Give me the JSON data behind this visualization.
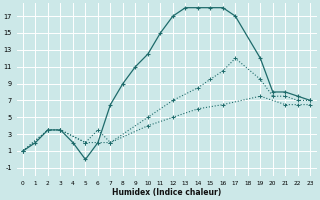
{
  "xlabel": "Humidex (Indice chaleur)",
  "background_color": "#cce8e8",
  "grid_color": "#ffffff",
  "line_color": "#1e6b6b",
  "xlim": [
    -0.5,
    23.5
  ],
  "ylim": [
    -2,
    18.5
  ],
  "xticks": [
    0,
    1,
    2,
    3,
    4,
    5,
    6,
    7,
    8,
    9,
    10,
    11,
    12,
    13,
    14,
    15,
    16,
    17,
    18,
    19,
    20,
    21,
    22,
    23
  ],
  "yticks": [
    -1,
    1,
    3,
    5,
    7,
    9,
    11,
    13,
    15,
    17
  ],
  "series1_x": [
    0,
    1,
    2,
    3,
    4,
    5,
    6,
    7,
    8,
    9,
    10,
    11,
    12,
    13,
    14,
    15,
    16,
    17,
    19,
    20,
    21,
    22,
    23
  ],
  "series1_y": [
    1,
    2,
    3.5,
    3.5,
    2,
    0,
    2,
    6.5,
    9,
    11,
    12.5,
    15,
    17,
    18,
    18,
    18,
    18,
    17,
    12,
    8,
    8,
    7.5,
    7
  ],
  "series2_x": [
    0,
    2,
    3,
    5,
    6,
    7,
    10,
    12,
    14,
    15,
    16,
    17,
    19,
    20,
    21,
    22,
    23
  ],
  "series2_y": [
    1,
    3.5,
    3.5,
    2,
    3.5,
    2,
    5,
    7,
    8.5,
    9.5,
    10.5,
    12,
    9.5,
    7.5,
    7.5,
    7,
    7
  ],
  "series3_x": [
    0,
    2,
    3,
    5,
    7,
    10,
    12,
    14,
    16,
    19,
    21,
    22,
    23
  ],
  "series3_y": [
    1,
    3.5,
    3.5,
    2,
    2,
    4,
    5,
    6,
    6.5,
    7.5,
    6.5,
    6.5,
    6.5
  ]
}
